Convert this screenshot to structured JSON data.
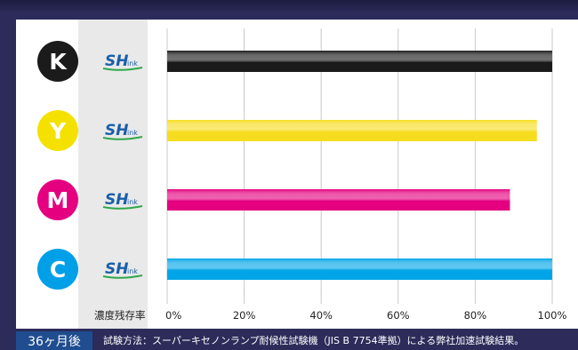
{
  "chart_data": {
    "type": "bar",
    "orientation": "horizontal",
    "categories": [
      "K",
      "Y",
      "M",
      "C"
    ],
    "series": [
      {
        "values": [
          100,
          96,
          89,
          100
        ]
      }
    ],
    "category_colors": {
      "K": "#1b1b1b",
      "Y": "#f4e100",
      "M": "#e5007f",
      "C": "#00a0e9"
    },
    "bar_colors": {
      "K": "#1a1a1a",
      "Y": "#f6dc1e",
      "M": "#e4007f",
      "C": "#00a5e8"
    },
    "xlabel": "濃度残存率",
    "xlim": [
      0,
      100
    ],
    "xticks": [
      "0%",
      "20%",
      "40%",
      "60%",
      "80%",
      "100%"
    ],
    "grid": true
  },
  "brand": {
    "logo_text": "SH",
    "logo_sub": "ink",
    "logo_color": "#1a5fa8"
  },
  "footer": {
    "period": "36ヶ月後",
    "note": "試験方法：スーパーキセノンランプ耐候性試験機（JIS B 7754準拠）による弊社加速試験結果。"
  }
}
